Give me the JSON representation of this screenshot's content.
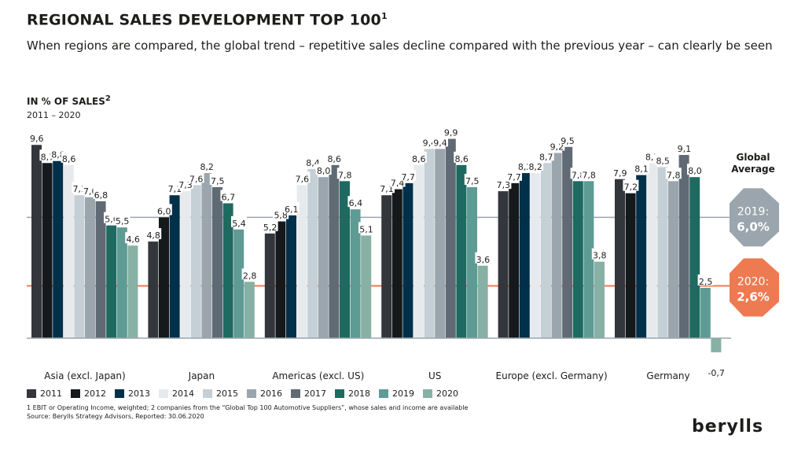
{
  "header": {
    "title": "REGIONAL SALES DEVELOPMENT TOP 100",
    "title_sup": "1",
    "subtitle": "When regions are compared, the global trend – repetitive sales decline compared with the previous year – can clearly be seen",
    "unit": "IN % OF SALES",
    "unit_sup": "2",
    "range": "2011 – 2020"
  },
  "chart_data": {
    "type": "bar",
    "categories": [
      "Asia (excl. Japan)",
      "Japan",
      "Americas (excl. US)",
      "US",
      "Europe (excl. Germany)",
      "Germany"
    ],
    "series": [
      {
        "name": "2011",
        "color": "#33373c",
        "values": [
          9.6,
          4.8,
          5.2,
          7.1,
          7.3,
          7.9
        ]
      },
      {
        "name": "2012",
        "color": "#16191b",
        "values": [
          8.7,
          6.0,
          5.8,
          7.4,
          7.7,
          7.2
        ]
      },
      {
        "name": "2013",
        "color": "#01304a",
        "values": [
          8.8,
          7.1,
          6.1,
          7.7,
          8.2,
          8.1
        ]
      },
      {
        "name": "2014",
        "color": "#e6eaed",
        "values": [
          8.6,
          7.3,
          7.6,
          8.6,
          8.2,
          8.7
        ]
      },
      {
        "name": "2015",
        "color": "#c4cfd6",
        "values": [
          7.1,
          7.6,
          8.4,
          9.4,
          8.7,
          8.5
        ]
      },
      {
        "name": "2016",
        "color": "#9aa5ad",
        "values": [
          7.0,
          8.2,
          8.0,
          9.4,
          9.2,
          7.8
        ]
      },
      {
        "name": "2017",
        "color": "#5f6a74",
        "values": [
          6.8,
          7.5,
          8.6,
          9.9,
          9.5,
          9.1
        ]
      },
      {
        "name": "2018",
        "color": "#1e6a60",
        "values": [
          5.6,
          6.7,
          7.8,
          8.6,
          7.8,
          8.0
        ]
      },
      {
        "name": "2019",
        "color": "#5e9b94",
        "values": [
          5.5,
          5.4,
          6.4,
          7.5,
          7.8,
          2.5
        ]
      },
      {
        "name": "2020",
        "color": "#86b1a4",
        "values": [
          4.6,
          2.8,
          5.1,
          3.6,
          3.8,
          -0.7
        ]
      }
    ],
    "reference_lines": [
      {
        "label": "2019:",
        "value_label": "6,0%",
        "value": 6.0,
        "color": "#9aa5ad"
      },
      {
        "label": "2020:",
        "value_label": "2,6%",
        "value": 2.6,
        "color": "#ee7a52"
      }
    ],
    "reference_title": "Global Average",
    "legend": "bottom",
    "decimal_separator": ","
  },
  "footnotes": [
    "1 EBIT or Operating Income, weighted; 2 companies from the “Global Top 100 Automotive Suppliers”, whose sales and income are available",
    "Source: Berylls Strategy Advisors, Reported: 30.06.2020"
  ],
  "logo": "berylls"
}
